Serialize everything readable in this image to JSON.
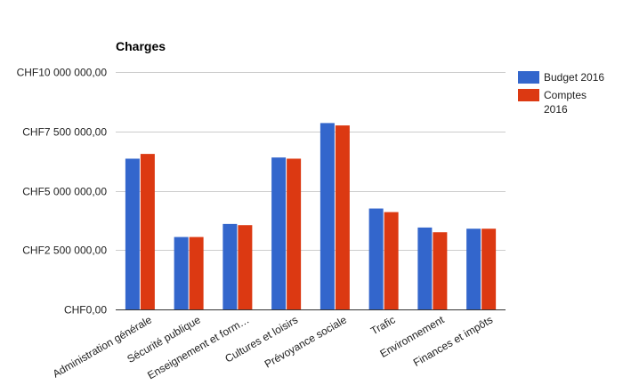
{
  "chart_data": {
    "type": "bar",
    "title": "Charges",
    "categories": [
      "Administration générale",
      "Sécurité publique",
      "Enseignement et form…",
      "Cultures et loisirs",
      "Prévoyance sociale",
      "Trafic",
      "Environnement",
      "Finances et impôts"
    ],
    "series": [
      {
        "name": "Budget 2016",
        "color": "#3366cc",
        "values": [
          6350000,
          3050000,
          3600000,
          6400000,
          7850000,
          4250000,
          3450000,
          3400000
        ]
      },
      {
        "name": "Comptes\n2016",
        "color": "#dc3912",
        "values": [
          6550000,
          3050000,
          3550000,
          6350000,
          7750000,
          4100000,
          3250000,
          3400000
        ]
      }
    ],
    "ylim": [
      0,
      10000000
    ],
    "yticks": [
      0,
      2500000,
      5000000,
      7500000,
      10000000
    ],
    "ytick_labels": [
      "CHF0,00",
      "CHF2 500 000,00",
      "CHF5 000 000,00",
      "CHF7 500 000,00",
      "CHF10 000 000,00"
    ],
    "grid": true,
    "legend_position": "right"
  }
}
